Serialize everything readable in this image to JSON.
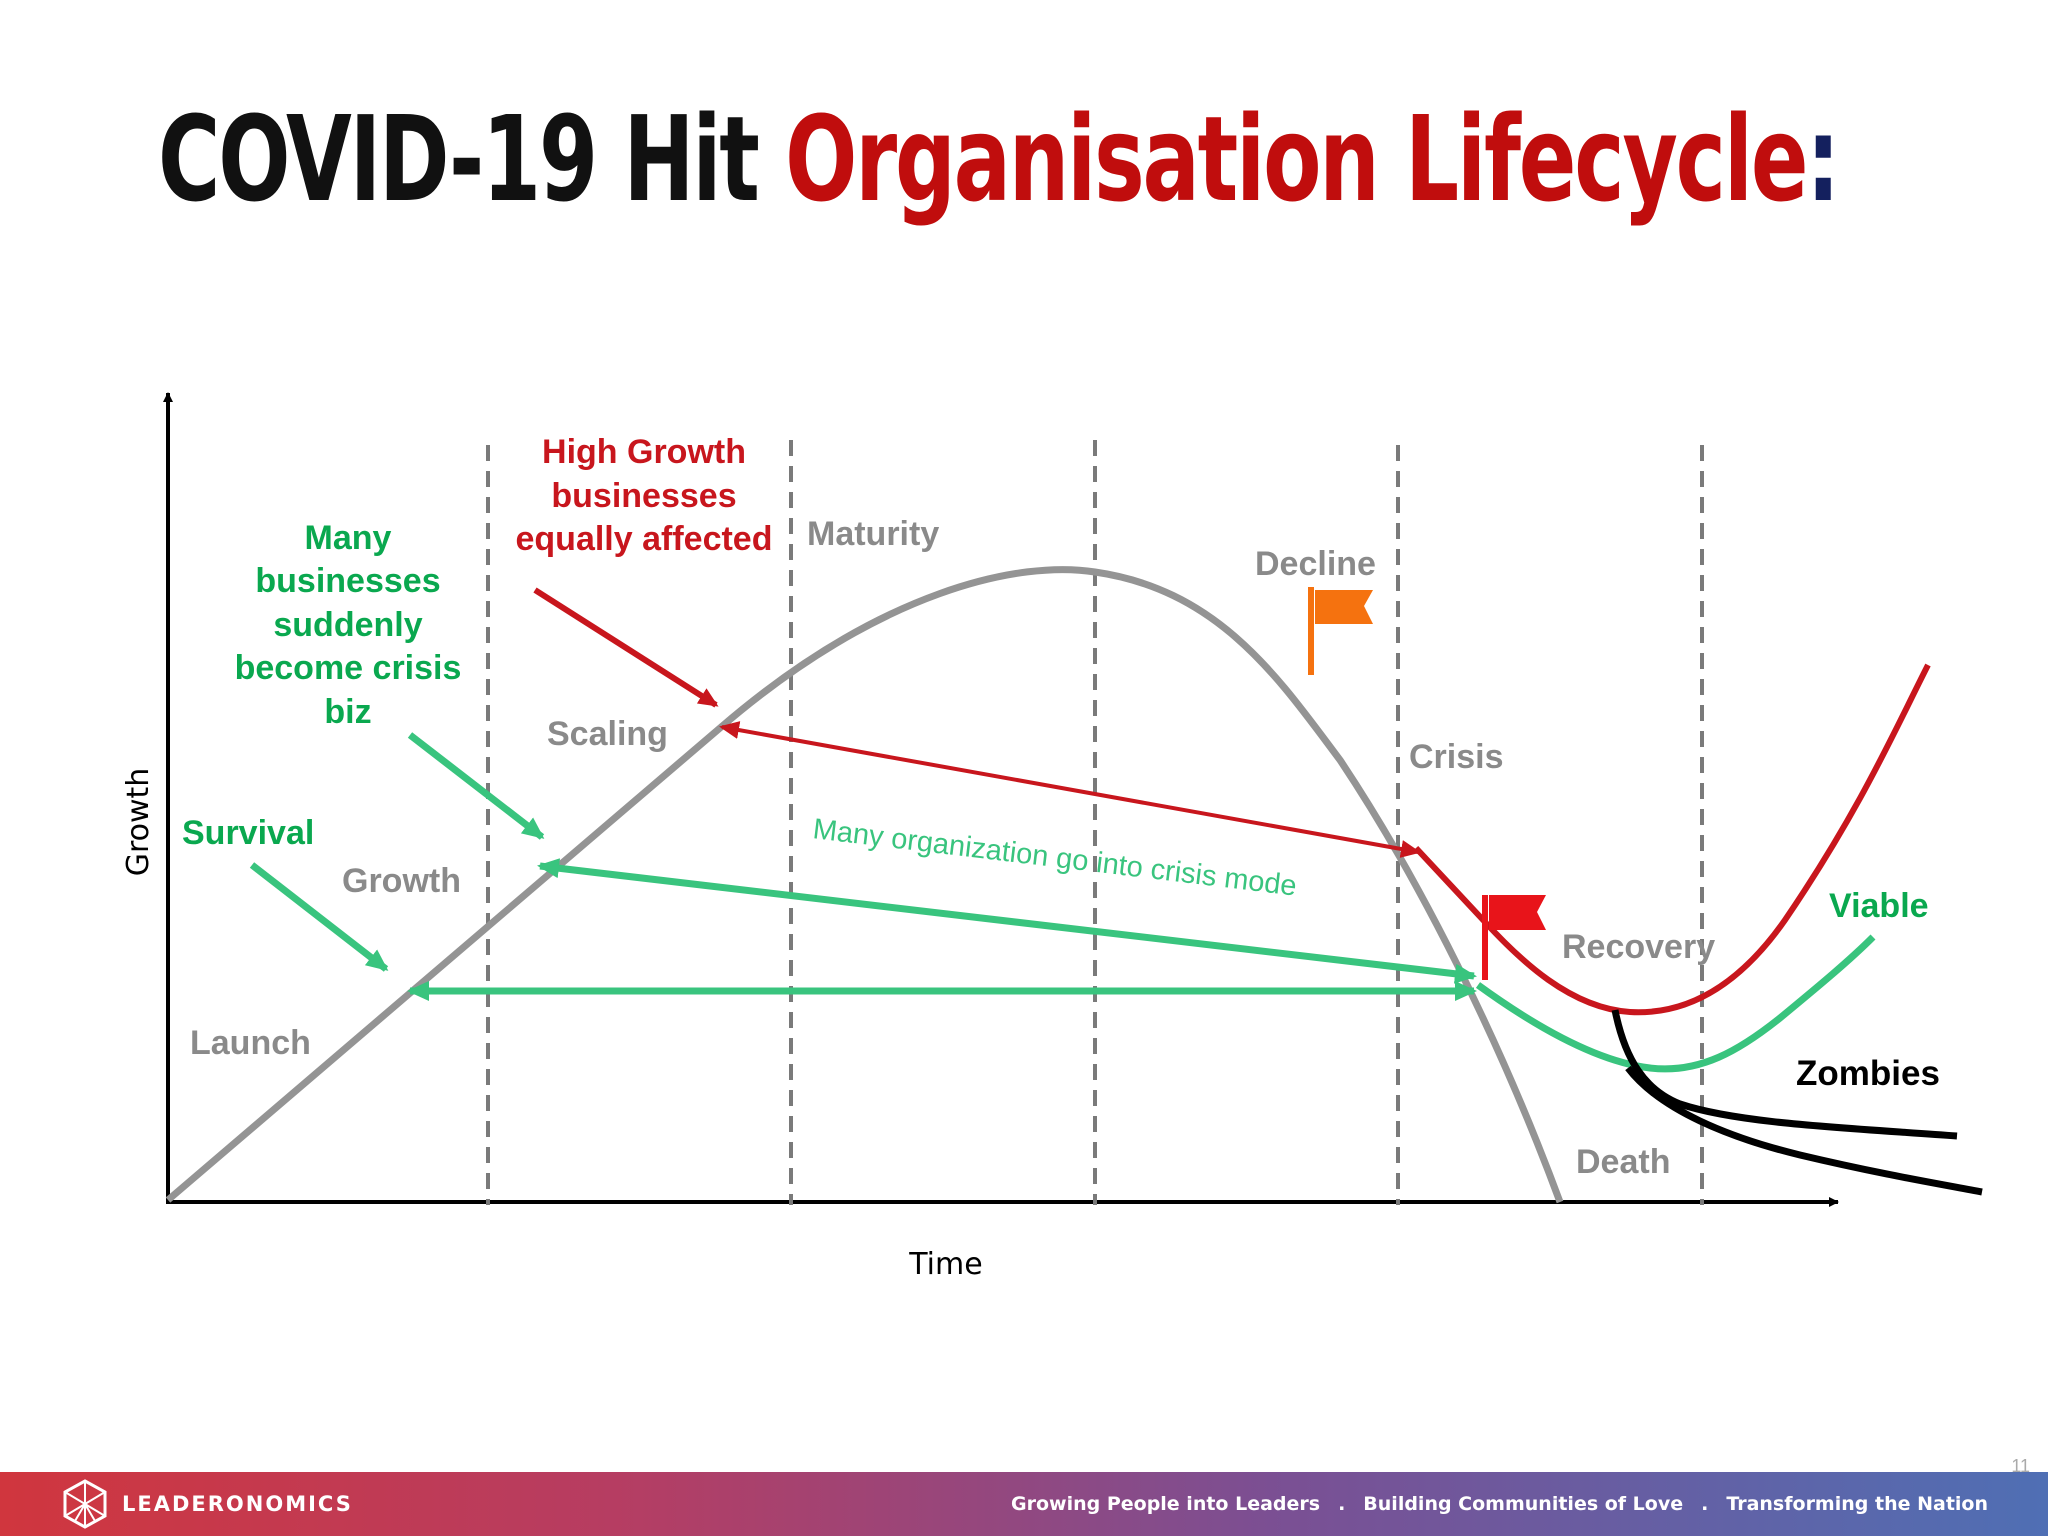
{
  "slide": {
    "title": {
      "part1": "COVID-19 Hit ",
      "part2": "Organisation Lifecycle",
      "part3": ":"
    },
    "page_number": "11"
  },
  "colors": {
    "title_black": "#111111",
    "title_red": "#c00d0d",
    "title_colon": "#14205e",
    "lifecycle_curve": "#949494",
    "high_growth": "#c8161d",
    "crisis_green": "#39c47e",
    "label_green": "#0aa84f",
    "zombies": "#000000",
    "decline_flag": "#f5720f",
    "crisis_flag": "#e8141a"
  },
  "diagram": {
    "axis": {
      "y_label": "Growth",
      "x_label": "Time"
    },
    "stages": {
      "launch": "Launch",
      "growth": "Growth",
      "scaling": "Scaling",
      "maturity": "Maturity",
      "decline": "Decline",
      "crisis": "Crisis",
      "recovery": "Recovery",
      "death": "Death",
      "viable": "Viable",
      "zombies": "Zombies"
    },
    "annotations": {
      "survival": "Survival",
      "many_businesses": [
        "Many",
        "businesses",
        "suddenly",
        "become crisis",
        "biz"
      ],
      "high_growth": [
        "High Growth",
        "businesses",
        "equally affected"
      ],
      "crisis_mode": "Many organization go into crisis mode"
    },
    "icons": {
      "decline_flag": "flag-icon",
      "crisis_flag": "flag-icon"
    }
  },
  "footer": {
    "brand": "LEADERONOMICS",
    "tagline": [
      "Growing People into Leaders",
      "Building Communities of Love",
      "Transforming the Nation"
    ],
    "separator": "."
  }
}
